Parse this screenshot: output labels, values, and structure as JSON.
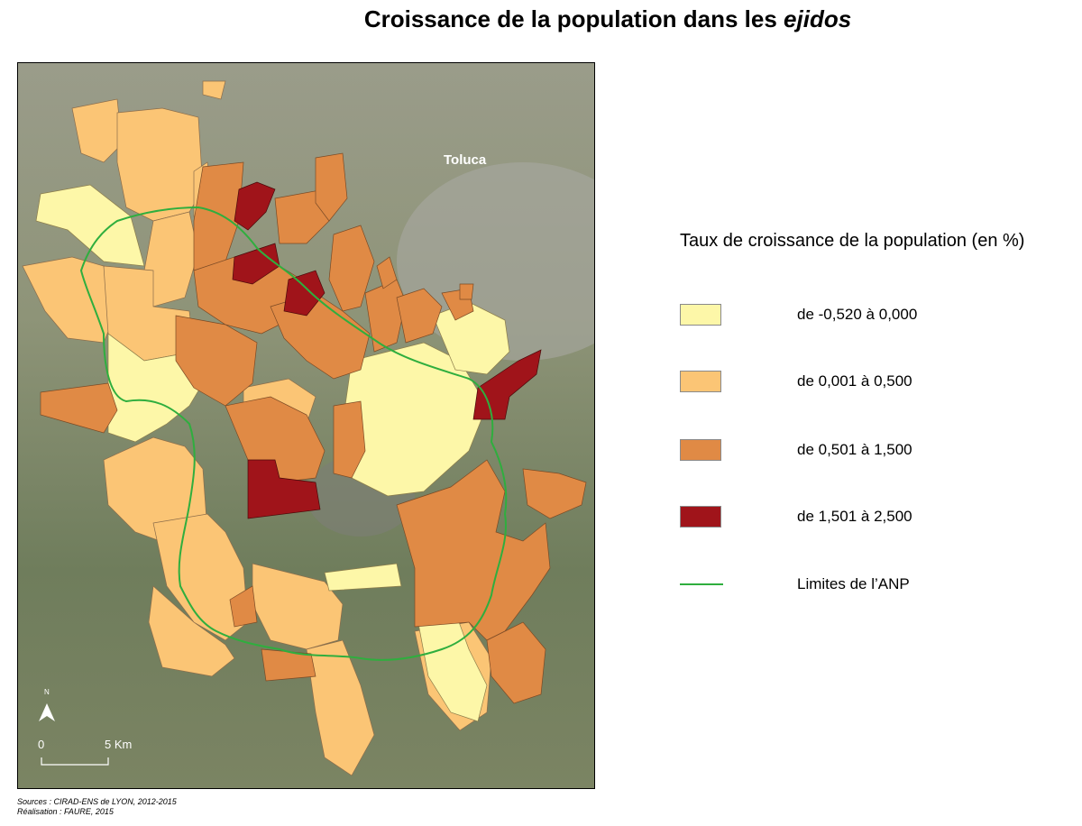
{
  "title": {
    "text": "Croissance de la population dans les ",
    "italic": "ejidos"
  },
  "map": {
    "city_label": "Toluca",
    "north_label": "N",
    "scale": {
      "start": "0",
      "end": "5 Km"
    },
    "colors": {
      "class1": "#fdf7a8",
      "class2": "#fbc575",
      "class3": "#e08a45",
      "class4": "#a0141a",
      "boundary": "#2fae3e"
    }
  },
  "legend": {
    "title": "Taux de croissance de la population (en %)",
    "items": [
      {
        "label": "de -0,520  à 0,000",
        "color": "#fdf7a8"
      },
      {
        "label": "de 0,001 à 0,500",
        "color": "#fbc575"
      },
      {
        "label": "de 0,501 à 1,500",
        "color": "#e08a45"
      },
      {
        "label": "de 1,501 à 2,500",
        "color": "#a0141a"
      }
    ],
    "boundary_label": "Limites de l’ANP",
    "boundary_color": "#2fae3e"
  },
  "sources": {
    "line1": "Sources : CIRAD-ENS de LYON, 2012-2015",
    "line2": "Réalisation : FAURE, 2015"
  }
}
